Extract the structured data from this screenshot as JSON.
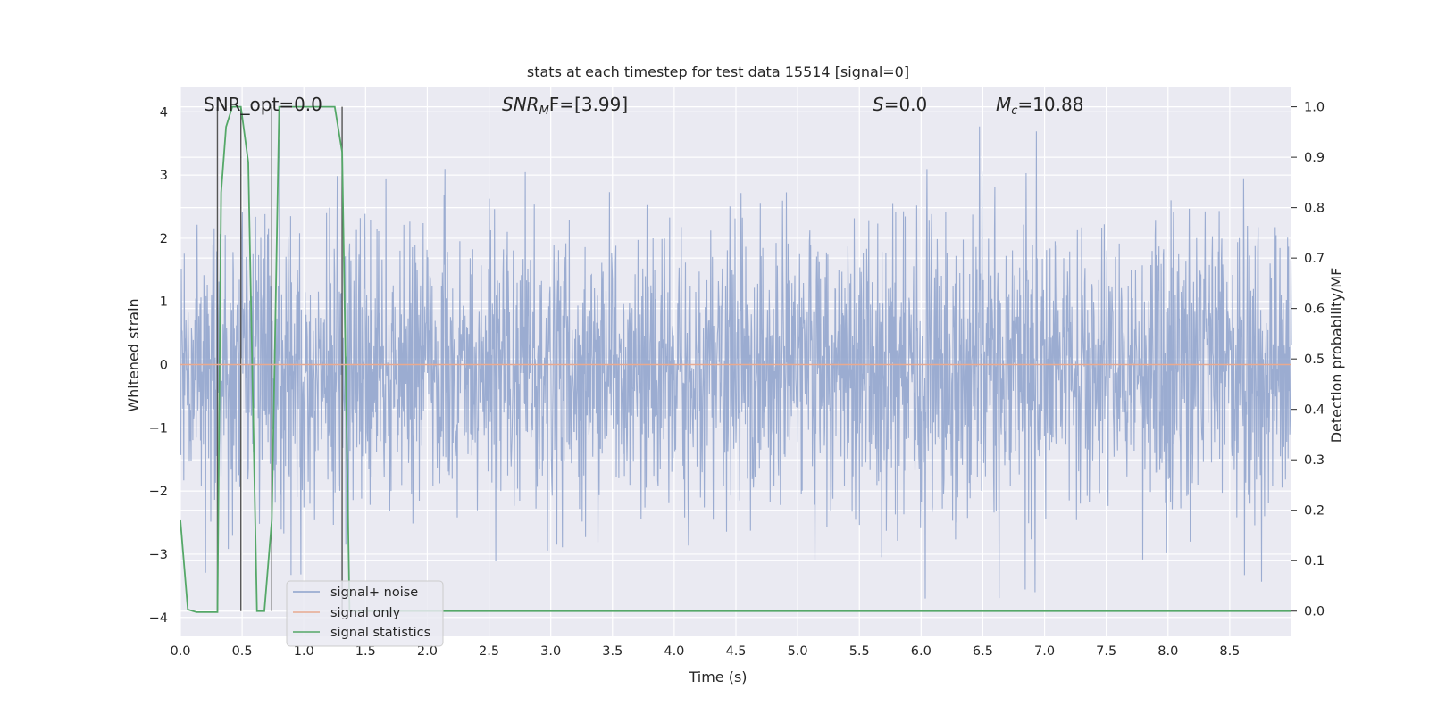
{
  "chart_data": {
    "type": "line",
    "title": "stats at each timestep for test data 15514 [signal=0]",
    "xlabel": "Time (s)",
    "ylabel": "Whitened strain",
    "y2label": "Detection probability/MF",
    "xlim": [
      0.0,
      9.0
    ],
    "ylim": [
      -4.3,
      4.4
    ],
    "y2lim": [
      -0.05,
      1.04
    ],
    "xticks": [
      "0.0",
      "0.5",
      "1.0",
      "1.5",
      "2.0",
      "2.5",
      "3.0",
      "3.5",
      "4.0",
      "4.5",
      "5.0",
      "5.5",
      "6.0",
      "6.5",
      "7.0",
      "7.5",
      "8.0",
      "8.5"
    ],
    "yticks": [
      "4",
      "3",
      "2",
      "1",
      "0",
      "−1",
      "−2",
      "−3",
      "−4"
    ],
    "y2ticks": [
      "1.0",
      "0.9",
      "0.8",
      "0.7",
      "0.6",
      "0.5",
      "0.4",
      "0.3",
      "0.2",
      "0.1",
      "0.0"
    ],
    "grid": true,
    "legend_position": "lower-left",
    "annotations": {
      "snr_opt": "SNR_opt=0.0",
      "snr_mf_prefix": "SNR",
      "snr_mf_sub": "M",
      "snr_mf_suffix": "F=[3.99]",
      "s_symbol": "S",
      "s_value": "=0.0",
      "mc_symbol": "M",
      "mc_sub": "c",
      "mc_value": "=10.88"
    },
    "series": [
      {
        "name": "signal+ noise",
        "color": "#8da1cb",
        "description_values": "white Gaussian noise, roughly within ±3.8 whitened strain",
        "noise_std": 1.0,
        "max_abs": 3.8
      },
      {
        "name": "signal only",
        "color": "#e8a990",
        "x": [
          0.0,
          9.0
        ],
        "y": [
          0.0,
          0.0
        ]
      },
      {
        "name": "signal statistics",
        "color": "#55a868",
        "axis": "right",
        "x": [
          0.0,
          0.06,
          0.13,
          0.3,
          0.33,
          0.37,
          0.42,
          0.49,
          0.55,
          0.62,
          0.68,
          0.74,
          0.8,
          0.86,
          1.0,
          1.25,
          1.31,
          1.37,
          1.5,
          9.0
        ],
        "y": [
          0.18,
          0.003,
          -0.002,
          -0.002,
          0.83,
          0.96,
          1.0,
          1.0,
          0.89,
          0.0,
          0.0,
          0.18,
          1.0,
          1.0,
          1.0,
          1.0,
          0.91,
          0.0,
          0.0,
          0.0
        ]
      }
    ],
    "vertical_lines_x": [
      0.3,
      0.49,
      0.74,
      1.31
    ]
  }
}
